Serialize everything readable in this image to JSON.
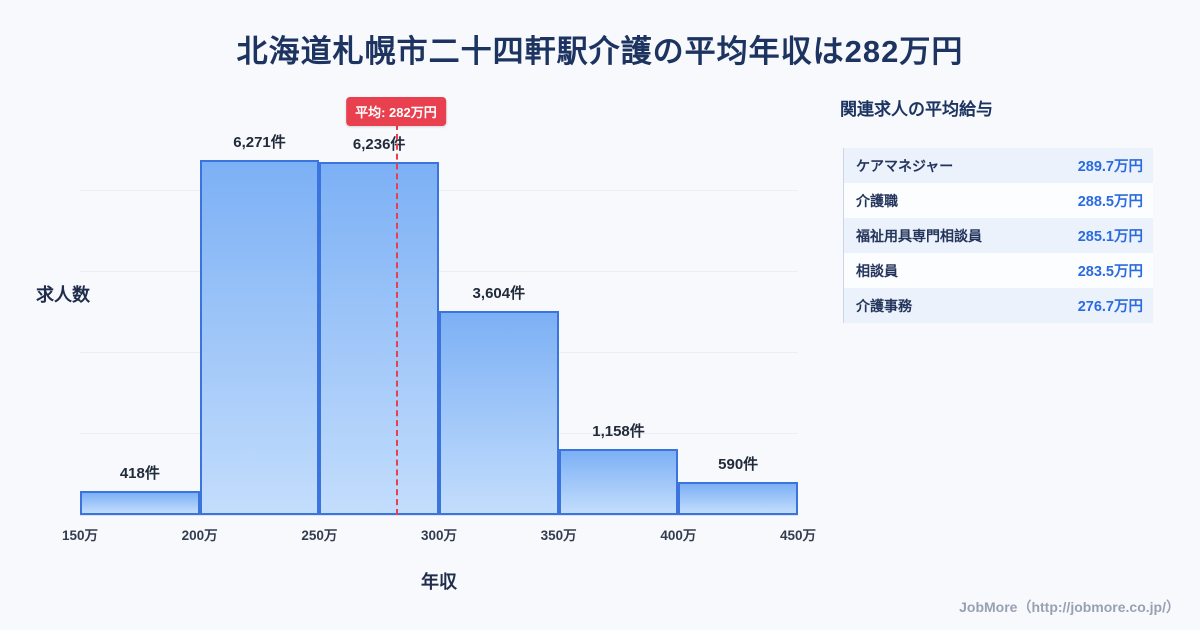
{
  "page": {
    "title": "北海道札幌市二十四軒駅介護の平均年収は282万円",
    "footer": "JobMore（http://jobmore.co.jp/）"
  },
  "chart_data": {
    "type": "bar",
    "title": "北海道札幌市二十四軒駅介護の平均年収は282万円",
    "xlabel": "年収",
    "ylabel": "求人数",
    "bins": [
      "150万",
      "200万",
      "250万",
      "300万",
      "350万",
      "400万",
      "450万"
    ],
    "categories": [
      "150万-200万",
      "200万-250万",
      "250万-300万",
      "300万-350万",
      "350万-400万",
      "400万-450万"
    ],
    "values": [
      418,
      6271,
      6236,
      3604,
      1158,
      590
    ],
    "bar_labels": [
      "418件",
      "6,271件",
      "6,236件",
      "3,604件",
      "1,158件",
      "590件"
    ],
    "average": {
      "value": 282,
      "label": "平均: 282万円"
    },
    "xrange": [
      150,
      450
    ],
    "ylim": [
      0,
      7000
    ],
    "grid": true,
    "legend": "none",
    "colors": {
      "bar_fill_top": "#7cb0f5",
      "bar_fill_bottom": "#c3ddfc",
      "bar_border": "#3a74dc",
      "average_line": "#e8404e",
      "title_text": "#1d3461",
      "value_text": "#2b6be0",
      "background": "#f7f9fd"
    }
  },
  "side_panel": {
    "title": "関連求人の平均給与",
    "rows": [
      {
        "label": "ケアマネジャー",
        "value": "289.7万円"
      },
      {
        "label": "介護職",
        "value": "288.5万円"
      },
      {
        "label": "福祉用具専門相談員",
        "value": "285.1万円"
      },
      {
        "label": "相談員",
        "value": "283.5万円"
      },
      {
        "label": "介護事務",
        "value": "276.7万円"
      }
    ]
  }
}
